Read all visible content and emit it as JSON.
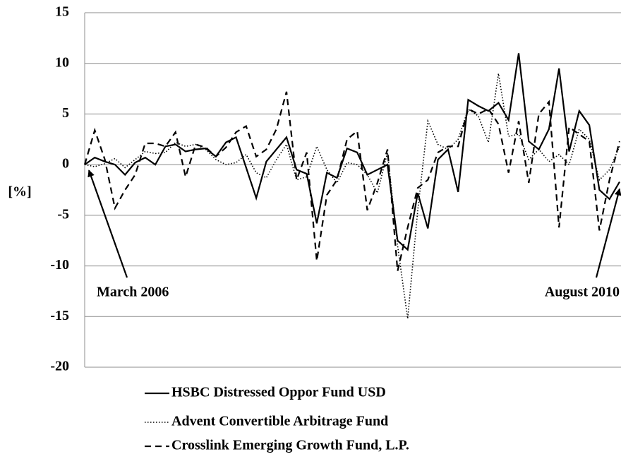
{
  "chart_data": {
    "type": "line",
    "y_label": "[%]",
    "categories": [
      null,
      null,
      null,
      null,
      null,
      null,
      null,
      null,
      null,
      null,
      null,
      null,
      null,
      null,
      null,
      null,
      null,
      null,
      null,
      null,
      null,
      null,
      null,
      null,
      null,
      null,
      null,
      null,
      null,
      null,
      null,
      null,
      null,
      null,
      null,
      null,
      null,
      null,
      null,
      null,
      null,
      null,
      null,
      null,
      null,
      null,
      null,
      null,
      null,
      null,
      null,
      null,
      null,
      null
    ],
    "series": [
      {
        "name": "HSBC Distressed Oppor Fund USD",
        "color": "#000000",
        "dash": "solid",
        "values": [
          0,
          0.7,
          0.3,
          0,
          -1,
          0.2,
          0.7,
          0,
          1.8,
          2,
          1.3,
          1.5,
          1.6,
          0.8,
          2.2,
          2.7,
          -0.3,
          -3.3,
          0.3,
          1.5,
          2.7,
          -0.5,
          -0.9,
          -5.8,
          -0.8,
          -1.3,
          1.6,
          1.2,
          -1,
          -0.5,
          0,
          -7.5,
          -8.4,
          -2.8,
          -6.3,
          0.5,
          1.5,
          -2.7,
          6.4,
          5.8,
          5.3,
          6.1,
          4.4,
          11,
          2.3,
          1.5,
          3.5,
          9.5,
          1.3,
          5.3,
          3.9,
          -2.5,
          -3.4,
          -1.7
        ]
      },
      {
        "name": "Advent Convertible Arbitrage Fund",
        "color": "#000000",
        "dash": "dotted",
        "values": [
          0,
          -0.2,
          0.1,
          0.6,
          -0.3,
          0.5,
          1.3,
          1.1,
          1.2,
          2.2,
          1.8,
          2,
          1.5,
          0.5,
          0,
          0.2,
          1,
          -0.8,
          -1.3,
          0.5,
          2,
          -1.5,
          -1.2,
          1.8,
          -0.5,
          -1.8,
          0.2,
          0,
          -1,
          -2.8,
          1.2,
          -8,
          -15.2,
          -4.5,
          4.3,
          2,
          1.5,
          2.5,
          5.5,
          4.8,
          2.2,
          9,
          2.8,
          3,
          0.5,
          1.5,
          0.3,
          1,
          0,
          3.5,
          2.5,
          -1.5,
          -0.5,
          1.8
        ]
      },
      {
        "name": "Crosslink Emerging Growth Fund, L.P.",
        "color": "#000000",
        "dash": "dashed",
        "values": [
          0,
          3.4,
          0.5,
          -4.3,
          -2.5,
          -1,
          2.1,
          2.1,
          1.8,
          3.2,
          -1.2,
          2,
          1.7,
          0.8,
          1.7,
          3.2,
          3.8,
          0.8,
          1.5,
          3.5,
          7.2,
          -1.5,
          1.2,
          -9.5,
          -3,
          -1.5,
          2.5,
          3.3,
          -4.5,
          -1.8,
          1.5,
          -10.5,
          -6.2,
          -2.3,
          -1.5,
          1.2,
          1.8,
          1.8,
          5.5,
          5,
          5.5,
          4,
          -0.8,
          4.3,
          -1.8,
          5,
          6.2,
          -6.2,
          3.7,
          3,
          2.3,
          -6.5,
          -1.5,
          2.3
        ]
      }
    ],
    "annotations": [
      "March 2006",
      "August 2010"
    ],
    "ylim": [
      -20,
      15
    ],
    "yticks": [
      -20,
      -15,
      -10,
      -5,
      0,
      5,
      10,
      15
    ],
    "grid": true,
    "legend": "bottom"
  }
}
